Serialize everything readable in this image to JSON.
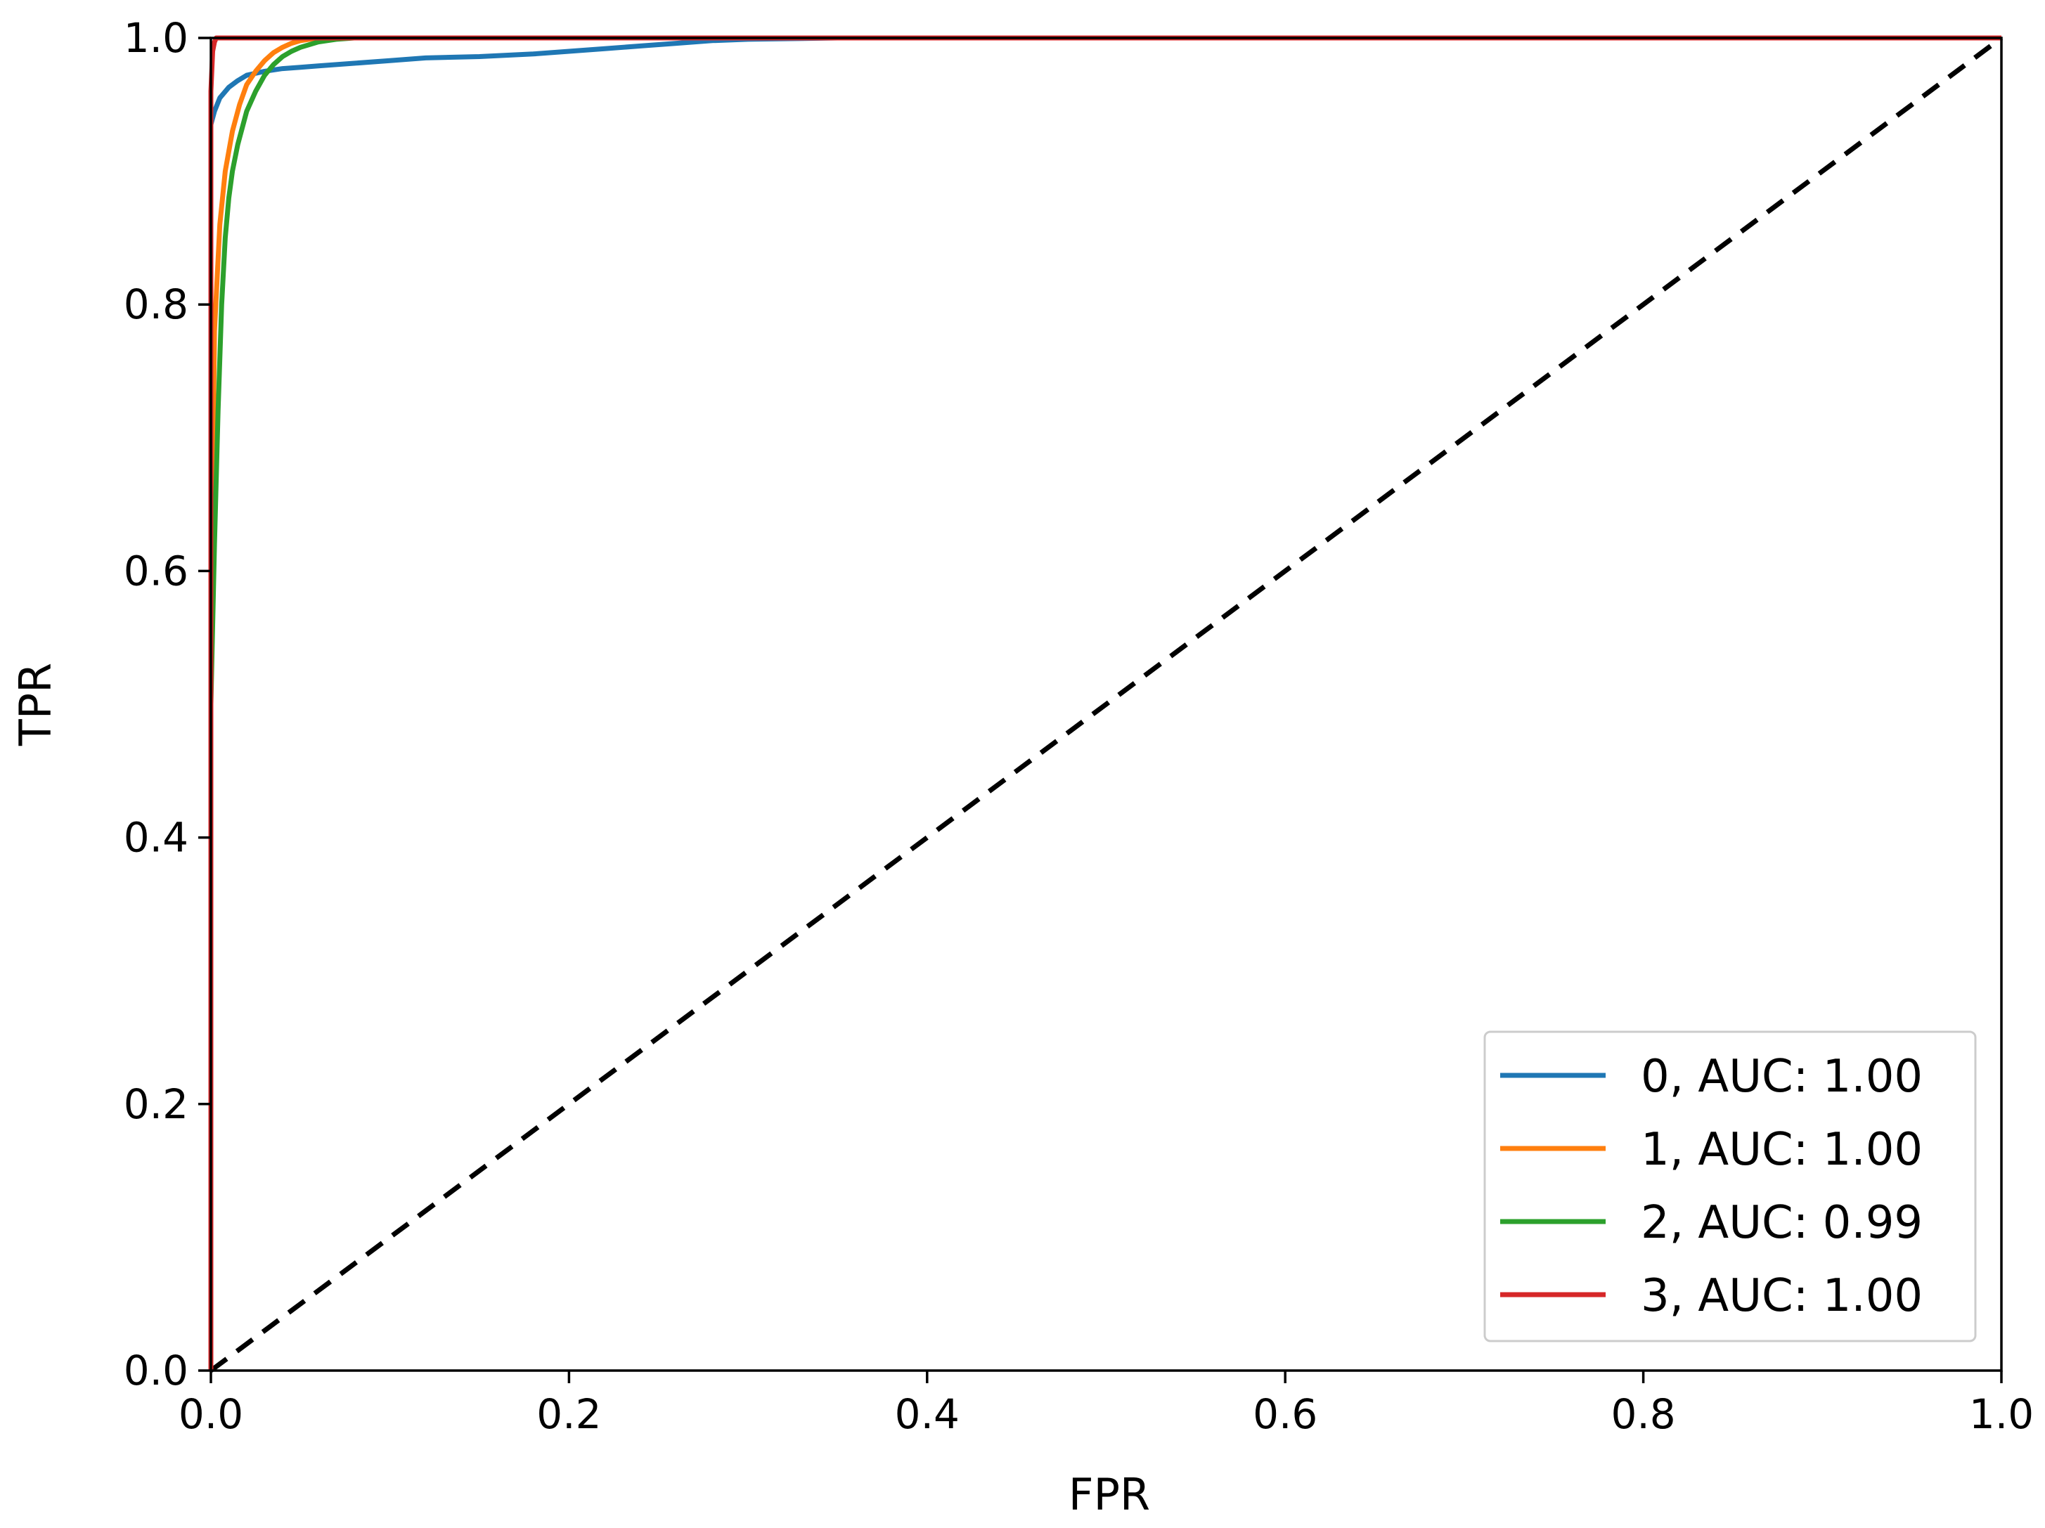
{
  "chart_data": {
    "type": "line",
    "title": "",
    "xlabel": "FPR",
    "ylabel": "TPR",
    "xlim": [
      0.0,
      1.0
    ],
    "ylim": [
      0.0,
      1.0
    ],
    "xticks": [
      "0.0",
      "0.2",
      "0.4",
      "0.6",
      "0.8",
      "1.0"
    ],
    "yticks": [
      "0.0",
      "0.2",
      "0.4",
      "0.6",
      "0.8",
      "1.0"
    ],
    "grid": false,
    "legend_position": "lower-right",
    "series": [
      {
        "name": "0, AUC: 1.00",
        "color": "#1f77b4",
        "x": [
          0.0,
          0.0,
          0.002,
          0.005,
          0.01,
          0.015,
          0.02,
          0.03,
          0.04,
          0.05,
          0.06,
          0.08,
          0.1,
          0.12,
          0.15,
          0.18,
          0.2,
          0.22,
          0.24,
          0.26,
          0.28,
          0.3,
          0.35,
          0.5,
          1.0
        ],
        "y": [
          0.0,
          0.935,
          0.945,
          0.955,
          0.963,
          0.968,
          0.972,
          0.975,
          0.977,
          0.978,
          0.979,
          0.981,
          0.983,
          0.985,
          0.986,
          0.988,
          0.99,
          0.992,
          0.994,
          0.996,
          0.998,
          0.999,
          1.0,
          1.0,
          1.0
        ]
      },
      {
        "name": "1, AUC: 1.00",
        "color": "#ff7f0e",
        "x": [
          0.0,
          0.0,
          0.002,
          0.005,
          0.008,
          0.012,
          0.016,
          0.02,
          0.025,
          0.03,
          0.035,
          0.04,
          0.045,
          0.05,
          0.06,
          0.08,
          0.1,
          1.0
        ],
        "y": [
          0.0,
          0.55,
          0.78,
          0.86,
          0.9,
          0.93,
          0.95,
          0.965,
          0.975,
          0.983,
          0.989,
          0.993,
          0.996,
          0.998,
          1.0,
          1.0,
          1.0,
          1.0
        ]
      },
      {
        "name": "2, AUC: 0.99",
        "color": "#2ca02c",
        "x": [
          0.0,
          0.0,
          0.002,
          0.004,
          0.006,
          0.008,
          0.01,
          0.012,
          0.015,
          0.02,
          0.025,
          0.03,
          0.035,
          0.04,
          0.045,
          0.05,
          0.06,
          0.07,
          0.08,
          0.1,
          1.0
        ],
        "y": [
          0.0,
          0.5,
          0.62,
          0.72,
          0.8,
          0.85,
          0.88,
          0.9,
          0.92,
          0.945,
          0.96,
          0.972,
          0.98,
          0.986,
          0.99,
          0.993,
          0.997,
          0.999,
          1.0,
          1.0,
          1.0
        ]
      },
      {
        "name": "3, AUC: 1.00",
        "color": "#d62728",
        "x": [
          0.0,
          0.0,
          0.001,
          0.002,
          0.003,
          1.0
        ],
        "y": [
          0.0,
          0.96,
          0.99,
          0.997,
          1.0,
          1.0
        ]
      }
    ],
    "reference_line": {
      "x": [
        0.0,
        1.0
      ],
      "y": [
        0.0,
        1.0
      ],
      "color": "#000000",
      "style": "dashed"
    }
  }
}
